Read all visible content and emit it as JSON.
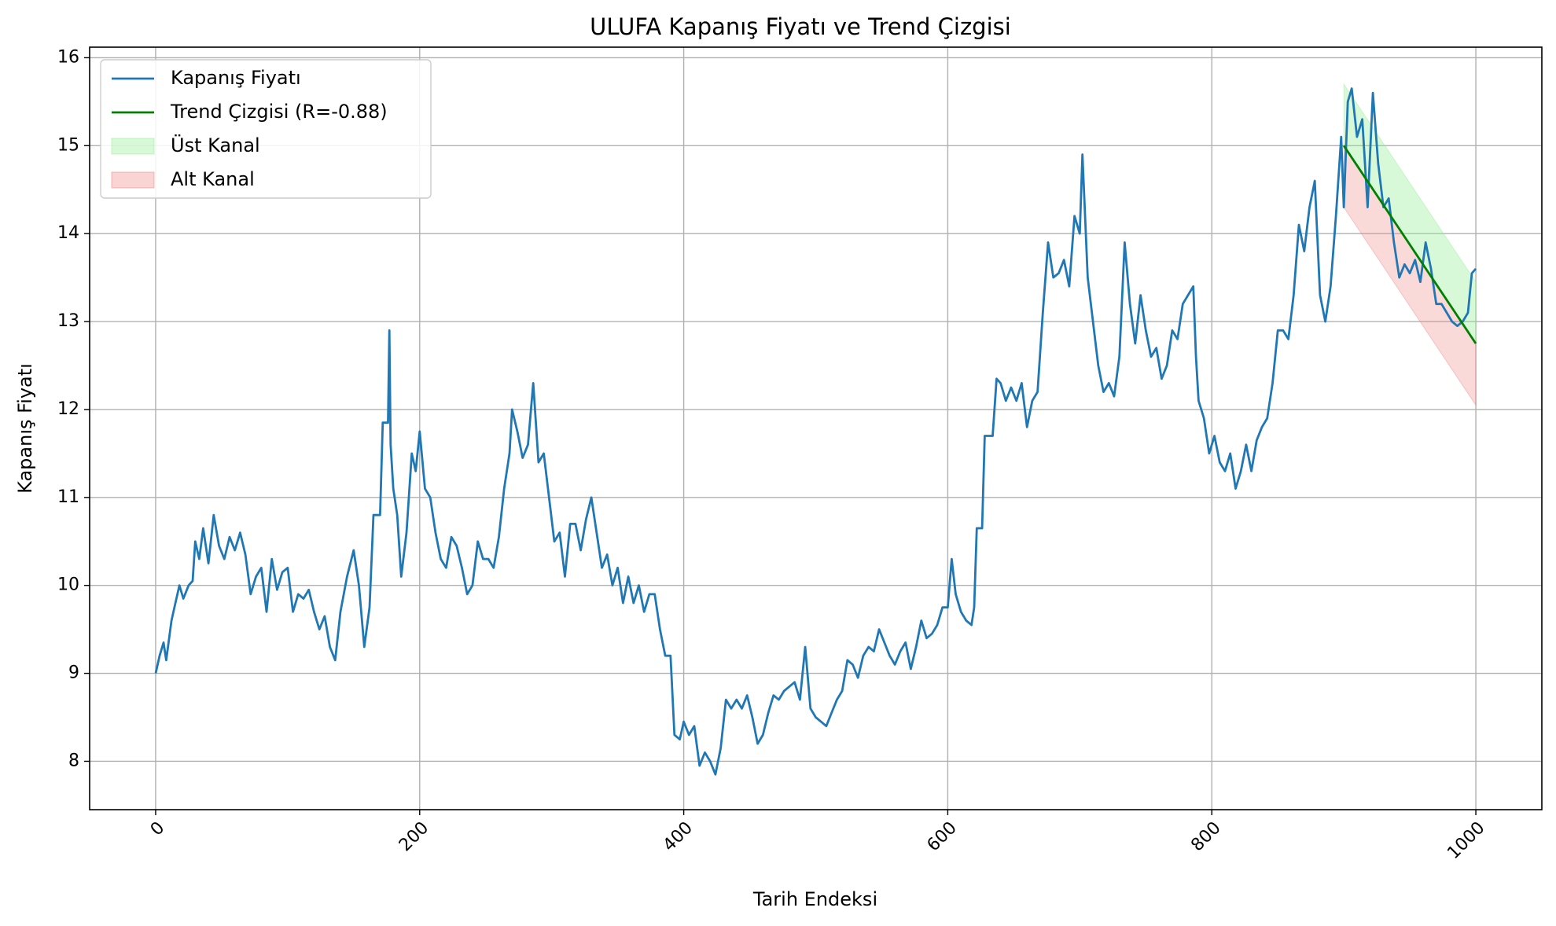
{
  "chart_data": {
    "type": "line",
    "title": "ULUFA Kapanış Fiyatı ve Trend Çizgisi",
    "xlabel": "Tarih Endeksi",
    "ylabel": "Kapanış Fiyatı",
    "xlim": [
      -50,
      1050
    ],
    "ylim": [
      7.45,
      16.12
    ],
    "x_ticks": [
      0,
      200,
      400,
      600,
      800,
      1000
    ],
    "y_ticks": [
      8,
      9,
      10,
      11,
      12,
      13,
      14,
      15,
      16
    ],
    "x_tick_rotation": 45,
    "grid": true,
    "legend_position": "top-left",
    "colors": {
      "price": "#1f77b4",
      "trend": "#008000",
      "upper_channel": "#90ee90",
      "lower_channel": "#f08080"
    },
    "legend": [
      {
        "label": "Kapanış Fiyatı",
        "kind": "line",
        "color": "#1f77b4"
      },
      {
        "label": "Trend Çizgisi (R=-0.88)",
        "kind": "line",
        "color": "#008000"
      },
      {
        "label": "Üst Kanal",
        "kind": "fill",
        "color": "#90ee90"
      },
      {
        "label": "Alt Kanal",
        "kind": "fill",
        "color": "#f08080"
      }
    ],
    "series": [
      {
        "name": "Kapanış Fiyatı",
        "points": [
          [
            0,
            9.0
          ],
          [
            3,
            9.2
          ],
          [
            6,
            9.35
          ],
          [
            8,
            9.15
          ],
          [
            12,
            9.6
          ],
          [
            15,
            9.8
          ],
          [
            18,
            10.0
          ],
          [
            21,
            9.85
          ],
          [
            25,
            10.0
          ],
          [
            28,
            10.05
          ],
          [
            30,
            10.5
          ],
          [
            33,
            10.3
          ],
          [
            36,
            10.65
          ],
          [
            40,
            10.25
          ],
          [
            44,
            10.8
          ],
          [
            48,
            10.45
          ],
          [
            52,
            10.3
          ],
          [
            56,
            10.55
          ],
          [
            60,
            10.4
          ],
          [
            64,
            10.6
          ],
          [
            68,
            10.35
          ],
          [
            72,
            9.9
          ],
          [
            76,
            10.1
          ],
          [
            80,
            10.2
          ],
          [
            84,
            9.7
          ],
          [
            88,
            10.3
          ],
          [
            92,
            9.95
          ],
          [
            96,
            10.15
          ],
          [
            100,
            10.2
          ],
          [
            104,
            9.7
          ],
          [
            108,
            9.9
          ],
          [
            112,
            9.85
          ],
          [
            116,
            9.95
          ],
          [
            120,
            9.7
          ],
          [
            124,
            9.5
          ],
          [
            128,
            9.65
          ],
          [
            132,
            9.3
          ],
          [
            136,
            9.15
          ],
          [
            140,
            9.7
          ],
          [
            145,
            10.1
          ],
          [
            150,
            10.4
          ],
          [
            154,
            10.0
          ],
          [
            158,
            9.3
          ],
          [
            162,
            9.75
          ],
          [
            165,
            10.8
          ],
          [
            170,
            10.8
          ],
          [
            172,
            11.85
          ],
          [
            176,
            11.85
          ],
          [
            177,
            12.9
          ],
          [
            178,
            11.6
          ],
          [
            180,
            11.1
          ],
          [
            183,
            10.8
          ],
          [
            186,
            10.1
          ],
          [
            190,
            10.6
          ],
          [
            194,
            11.5
          ],
          [
            197,
            11.3
          ],
          [
            200,
            11.75
          ],
          [
            204,
            11.1
          ],
          [
            208,
            11.0
          ],
          [
            212,
            10.6
          ],
          [
            216,
            10.3
          ],
          [
            220,
            10.2
          ],
          [
            224,
            10.55
          ],
          [
            228,
            10.45
          ],
          [
            232,
            10.2
          ],
          [
            236,
            9.9
          ],
          [
            240,
            10.0
          ],
          [
            244,
            10.5
          ],
          [
            248,
            10.3
          ],
          [
            252,
            10.3
          ],
          [
            256,
            10.2
          ],
          [
            260,
            10.55
          ],
          [
            264,
            11.1
          ],
          [
            268,
            11.5
          ],
          [
            270,
            12.0
          ],
          [
            274,
            11.75
          ],
          [
            278,
            11.45
          ],
          [
            282,
            11.6
          ],
          [
            286,
            12.3
          ],
          [
            290,
            11.4
          ],
          [
            294,
            11.5
          ],
          [
            298,
            11.0
          ],
          [
            302,
            10.5
          ],
          [
            306,
            10.6
          ],
          [
            310,
            10.1
          ],
          [
            314,
            10.7
          ],
          [
            318,
            10.7
          ],
          [
            322,
            10.4
          ],
          [
            326,
            10.75
          ],
          [
            330,
            11.0
          ],
          [
            334,
            10.6
          ],
          [
            338,
            10.2
          ],
          [
            342,
            10.35
          ],
          [
            346,
            10.0
          ],
          [
            350,
            10.2
          ],
          [
            354,
            9.8
          ],
          [
            358,
            10.1
          ],
          [
            362,
            9.8
          ],
          [
            366,
            10.0
          ],
          [
            370,
            9.7
          ],
          [
            374,
            9.9
          ],
          [
            378,
            9.9
          ],
          [
            382,
            9.5
          ],
          [
            386,
            9.2
          ],
          [
            390,
            9.2
          ],
          [
            393,
            8.3
          ],
          [
            397,
            8.25
          ],
          [
            400,
            8.45
          ],
          [
            404,
            8.3
          ],
          [
            408,
            8.4
          ],
          [
            412,
            7.95
          ],
          [
            416,
            8.1
          ],
          [
            420,
            8.0
          ],
          [
            424,
            7.85
          ],
          [
            428,
            8.15
          ],
          [
            432,
            8.7
          ],
          [
            436,
            8.6
          ],
          [
            440,
            8.7
          ],
          [
            444,
            8.6
          ],
          [
            448,
            8.75
          ],
          [
            452,
            8.5
          ],
          [
            456,
            8.2
          ],
          [
            460,
            8.3
          ],
          [
            464,
            8.55
          ],
          [
            468,
            8.75
          ],
          [
            472,
            8.7
          ],
          [
            476,
            8.8
          ],
          [
            480,
            8.85
          ],
          [
            484,
            8.9
          ],
          [
            488,
            8.7
          ],
          [
            492,
            9.3
          ],
          [
            496,
            8.6
          ],
          [
            500,
            8.5
          ],
          [
            504,
            8.45
          ],
          [
            508,
            8.4
          ],
          [
            512,
            8.55
          ],
          [
            516,
            8.7
          ],
          [
            520,
            8.8
          ],
          [
            524,
            9.15
          ],
          [
            528,
            9.1
          ],
          [
            532,
            8.95
          ],
          [
            536,
            9.2
          ],
          [
            540,
            9.3
          ],
          [
            544,
            9.25
          ],
          [
            548,
            9.5
          ],
          [
            552,
            9.35
          ],
          [
            556,
            9.2
          ],
          [
            560,
            9.1
          ],
          [
            564,
            9.25
          ],
          [
            568,
            9.35
          ],
          [
            572,
            9.05
          ],
          [
            576,
            9.3
          ],
          [
            580,
            9.6
          ],
          [
            584,
            9.4
          ],
          [
            588,
            9.45
          ],
          [
            592,
            9.55
          ],
          [
            596,
            9.75
          ],
          [
            600,
            9.75
          ],
          [
            603,
            10.3
          ],
          [
            606,
            9.9
          ],
          [
            610,
            9.7
          ],
          [
            614,
            9.6
          ],
          [
            618,
            9.55
          ],
          [
            620,
            9.75
          ],
          [
            622,
            10.65
          ],
          [
            626,
            10.65
          ],
          [
            628,
            11.7
          ],
          [
            634,
            11.7
          ],
          [
            637,
            12.35
          ],
          [
            640,
            12.3
          ],
          [
            644,
            12.1
          ],
          [
            648,
            12.25
          ],
          [
            652,
            12.1
          ],
          [
            656,
            12.3
          ],
          [
            660,
            11.8
          ],
          [
            664,
            12.1
          ],
          [
            668,
            12.2
          ],
          [
            672,
            13.1
          ],
          [
            676,
            13.9
          ],
          [
            680,
            13.5
          ],
          [
            684,
            13.55
          ],
          [
            688,
            13.7
          ],
          [
            692,
            13.4
          ],
          [
            696,
            14.2
          ],
          [
            700,
            14.0
          ],
          [
            702,
            14.9
          ],
          [
            706,
            13.5
          ],
          [
            710,
            13.0
          ],
          [
            714,
            12.5
          ],
          [
            718,
            12.2
          ],
          [
            722,
            12.3
          ],
          [
            726,
            12.15
          ],
          [
            730,
            12.6
          ],
          [
            734,
            13.9
          ],
          [
            738,
            13.2
          ],
          [
            742,
            12.75
          ],
          [
            746,
            13.3
          ],
          [
            750,
            12.9
          ],
          [
            754,
            12.6
          ],
          [
            758,
            12.7
          ],
          [
            762,
            12.35
          ],
          [
            766,
            12.5
          ],
          [
            770,
            12.9
          ],
          [
            774,
            12.8
          ],
          [
            778,
            13.2
          ],
          [
            782,
            13.3
          ],
          [
            786,
            13.4
          ],
          [
            788,
            12.6
          ],
          [
            790,
            12.1
          ],
          [
            794,
            11.9
          ],
          [
            798,
            11.5
          ],
          [
            802,
            11.7
          ],
          [
            806,
            11.4
          ],
          [
            810,
            11.3
          ],
          [
            814,
            11.5
          ],
          [
            818,
            11.1
          ],
          [
            822,
            11.3
          ],
          [
            826,
            11.6
          ],
          [
            830,
            11.3
          ],
          [
            834,
            11.65
          ],
          [
            838,
            11.8
          ],
          [
            842,
            11.9
          ],
          [
            846,
            12.3
          ],
          [
            850,
            12.9
          ],
          [
            854,
            12.9
          ],
          [
            858,
            12.8
          ],
          [
            862,
            13.3
          ],
          [
            866,
            14.1
          ],
          [
            870,
            13.8
          ],
          [
            874,
            14.3
          ],
          [
            878,
            14.6
          ],
          [
            882,
            13.3
          ],
          [
            886,
            13.0
          ],
          [
            890,
            13.4
          ],
          [
            894,
            14.2
          ],
          [
            898,
            15.1
          ],
          [
            900,
            14.3
          ],
          [
            903,
            15.5
          ],
          [
            906,
            15.65
          ],
          [
            910,
            15.1
          ],
          [
            914,
            15.3
          ],
          [
            918,
            14.3
          ],
          [
            922,
            15.6
          ],
          [
            926,
            14.8
          ],
          [
            930,
            14.3
          ],
          [
            934,
            14.4
          ],
          [
            938,
            13.9
          ],
          [
            942,
            13.5
          ],
          [
            946,
            13.65
          ],
          [
            950,
            13.55
          ],
          [
            954,
            13.7
          ],
          [
            958,
            13.45
          ],
          [
            962,
            13.9
          ],
          [
            966,
            13.6
          ],
          [
            970,
            13.2
          ],
          [
            974,
            13.2
          ],
          [
            978,
            13.1
          ],
          [
            982,
            13.0
          ],
          [
            986,
            12.95
          ],
          [
            990,
            13.0
          ],
          [
            994,
            13.1
          ],
          [
            997,
            13.55
          ],
          [
            1000,
            13.6
          ]
        ]
      },
      {
        "name": "Trend Çizgisi (R=-0.88)",
        "points": [
          [
            900,
            15.0
          ],
          [
            1000,
            12.75
          ]
        ]
      }
    ],
    "channels": [
      {
        "name": "Üst Kanal",
        "x": [
          900,
          1000
        ],
        "upper": [
          15.7,
          13.45
        ],
        "lower": [
          15.0,
          12.75
        ]
      },
      {
        "name": "Alt Kanal",
        "x": [
          900,
          1000
        ],
        "upper": [
          15.0,
          12.75
        ],
        "lower": [
          14.3,
          12.05
        ]
      }
    ]
  }
}
